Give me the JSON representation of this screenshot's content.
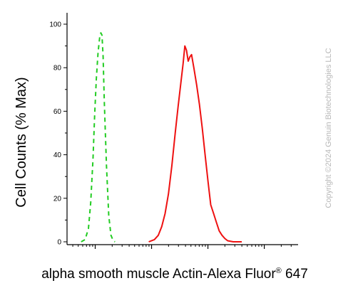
{
  "chart_data": {
    "type": "line",
    "ylabel": "Cell Counts (% Max)",
    "xlabel_main": "alpha smooth muscle Actin-Alexa Fluor",
    "xlabel_reg": "®",
    "xlabel_tail": " 647",
    "watermark": "Copyright ©2024 Genuin Biotechnologies LLC",
    "xscale": "log",
    "xlim": [
      -0.5,
      3.6
    ],
    "ylim": [
      0,
      105
    ],
    "yticks": [
      "0",
      "20",
      "40",
      "60",
      "80",
      "100"
    ],
    "grid": false,
    "series": [
      {
        "color": "#22cc22",
        "style": "dashed",
        "x": [
          -0.25,
          -0.18,
          -0.12,
          -0.08,
          -0.04,
          -0.01,
          0.02,
          0.05,
          0.08,
          0.1,
          0.12,
          0.14,
          0.16,
          0.2,
          0.24,
          0.28,
          0.32,
          0.35
        ],
        "y": [
          0,
          1,
          6,
          18,
          38,
          58,
          75,
          87,
          94,
          96,
          95,
          85,
          65,
          35,
          12,
          3,
          0.5,
          0
        ]
      },
      {
        "color": "#ee1111",
        "style": "solid",
        "x": [
          0.95,
          1.05,
          1.12,
          1.18,
          1.24,
          1.3,
          1.36,
          1.42,
          1.47,
          1.52,
          1.56,
          1.59,
          1.62,
          1.65,
          1.68,
          1.71,
          1.75,
          1.8,
          1.85,
          1.9,
          1.95,
          2.0,
          2.05,
          2.1,
          2.15,
          2.2,
          2.25,
          2.3,
          2.35,
          2.45,
          2.6
        ],
        "y": [
          0,
          1,
          3,
          7,
          13,
          22,
          35,
          50,
          62,
          73,
          82,
          90,
          88,
          83,
          85,
          86,
          80,
          72,
          63,
          52,
          40,
          28,
          17,
          13,
          9,
          5,
          3,
          1.5,
          0.5,
          0,
          0
        ]
      }
    ]
  }
}
